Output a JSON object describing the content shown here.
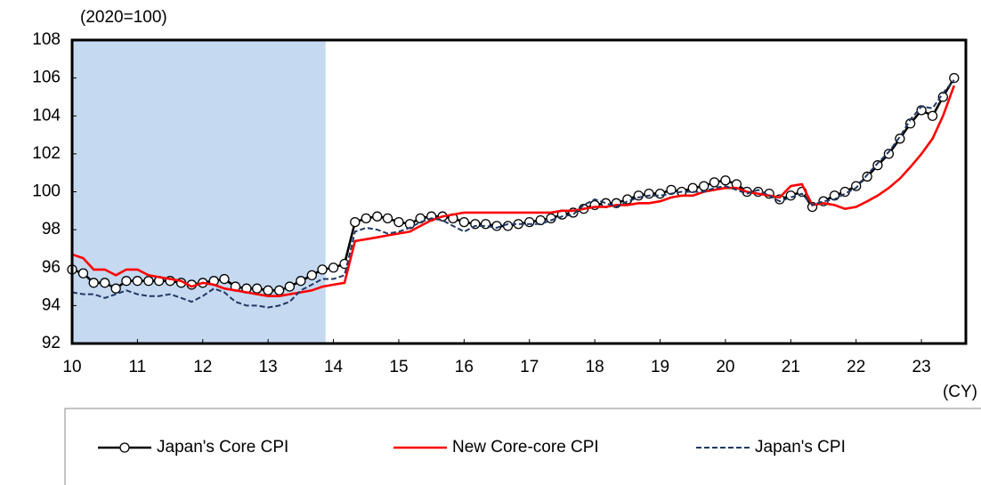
{
  "chart_data": {
    "type": "line",
    "y_label": "(2020=100)",
    "x_label": "(CY)",
    "xlim": [
      10,
      23.68
    ],
    "ylim": [
      92,
      108
    ],
    "xticks": [
      10,
      11,
      12,
      13,
      14,
      15,
      16,
      17,
      18,
      19,
      20,
      21,
      22,
      23
    ],
    "yticks": [
      92,
      94,
      96,
      98,
      100,
      102,
      104,
      106,
      108
    ],
    "shaded_region": {
      "x": [
        10,
        13.88
      ],
      "color": "#c5d9f1"
    },
    "x": [
      10,
      10.17,
      10.33,
      10.5,
      10.67,
      10.83,
      11,
      11.17,
      11.33,
      11.5,
      11.67,
      11.83,
      12,
      12.17,
      12.33,
      12.5,
      12.67,
      12.83,
      13,
      13.17,
      13.33,
      13.5,
      13.67,
      13.83,
      14,
      14.17,
      14.33,
      14.5,
      14.67,
      14.83,
      15,
      15.17,
      15.33,
      15.5,
      15.67,
      15.83,
      16,
      16.17,
      16.33,
      16.5,
      16.67,
      16.83,
      17,
      17.17,
      17.33,
      17.5,
      17.67,
      17.83,
      18,
      18.17,
      18.33,
      18.5,
      18.67,
      18.83,
      19,
      19.17,
      19.33,
      19.5,
      19.67,
      19.83,
      20,
      20.17,
      20.33,
      20.5,
      20.67,
      20.83,
      21,
      21.17,
      21.33,
      21.5,
      21.67,
      21.83,
      22,
      22.17,
      22.33,
      22.5,
      22.67,
      22.83,
      23,
      23.17,
      23.33,
      23.5
    ],
    "series": [
      {
        "name": "Japan's Core CPI",
        "color": "#000000",
        "marker": "circle",
        "dash": false,
        "values": [
          95.9,
          95.7,
          95.2,
          95.2,
          94.9,
          95.3,
          95.3,
          95.3,
          95.3,
          95.3,
          95.2,
          95.1,
          95.2,
          95.3,
          95.4,
          95.0,
          94.9,
          94.9,
          94.8,
          94.8,
          95.0,
          95.3,
          95.6,
          95.9,
          96.0,
          96.2,
          98.4,
          98.6,
          98.7,
          98.6,
          98.4,
          98.3,
          98.6,
          98.7,
          98.7,
          98.6,
          98.4,
          98.3,
          98.3,
          98.2,
          98.2,
          98.3,
          98.4,
          98.5,
          98.6,
          98.8,
          98.9,
          99.1,
          99.3,
          99.4,
          99.4,
          99.6,
          99.8,
          99.9,
          99.9,
          100.1,
          100.0,
          100.2,
          100.3,
          100.5,
          100.6,
          100.4,
          100.0,
          100.0,
          99.9,
          99.6,
          99.8,
          100.0,
          99.2,
          99.5,
          99.8,
          100.0,
          100.3,
          100.8,
          101.4,
          102.0,
          102.8,
          103.6,
          104.3,
          104.0,
          105.0,
          106.0
        ]
      },
      {
        "name": "New Core-core CPI",
        "color": "#ff0000",
        "marker": "none",
        "dash": false,
        "values": [
          96.7,
          96.5,
          95.9,
          95.9,
          95.6,
          95.9,
          95.9,
          95.6,
          95.5,
          95.4,
          95.3,
          95.0,
          95.2,
          95.1,
          94.9,
          94.8,
          94.7,
          94.6,
          94.5,
          94.5,
          94.6,
          94.7,
          94.8,
          95.0,
          95.1,
          95.2,
          97.4,
          97.5,
          97.6,
          97.7,
          97.8,
          97.9,
          98.2,
          98.5,
          98.7,
          98.8,
          98.9,
          98.9,
          98.9,
          98.9,
          98.9,
          98.9,
          98.9,
          98.9,
          98.9,
          99.0,
          99.0,
          99.1,
          99.2,
          99.2,
          99.3,
          99.3,
          99.4,
          99.4,
          99.5,
          99.7,
          99.8,
          99.8,
          100.0,
          100.1,
          100.2,
          100.2,
          100.0,
          99.9,
          99.8,
          99.7,
          100.3,
          100.4,
          99.3,
          99.4,
          99.3,
          99.1,
          99.2,
          99.5,
          99.8,
          100.2,
          100.7,
          101.3,
          102.0,
          102.8,
          104.0,
          105.6
        ]
      },
      {
        "name": "Japan's CPI",
        "color": "#203864",
        "marker": "none",
        "dash": true,
        "values": [
          94.7,
          94.6,
          94.6,
          94.4,
          94.6,
          94.8,
          94.6,
          94.5,
          94.5,
          94.6,
          94.4,
          94.2,
          94.5,
          94.9,
          94.7,
          94.2,
          94.0,
          94.0,
          93.9,
          94.0,
          94.2,
          94.8,
          95.1,
          95.4,
          95.4,
          95.6,
          97.9,
          98.1,
          98.0,
          97.8,
          97.9,
          98.1,
          98.4,
          98.6,
          98.5,
          98.2,
          97.9,
          98.2,
          98.2,
          98.1,
          98.3,
          98.3,
          98.3,
          98.3,
          98.5,
          98.7,
          98.8,
          99.3,
          99.6,
          99.4,
          99.2,
          99.5,
          99.7,
          99.8,
          99.8,
          99.9,
          100.0,
          100.0,
          100.0,
          100.2,
          100.3,
          100.1,
          99.9,
          100.1,
          99.8,
          99.5,
          99.7,
          99.9,
          99.3,
          99.5,
          99.6,
          99.9,
          100.2,
          100.9,
          101.5,
          102.1,
          102.9,
          103.8,
          104.5,
          104.4,
          105.2,
          105.9
        ]
      }
    ]
  }
}
